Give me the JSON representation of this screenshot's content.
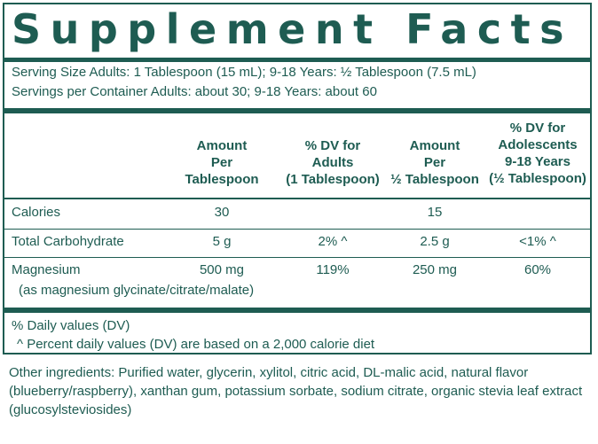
{
  "title": "Supplement Facts",
  "serving_size": "Serving Size Adults: 1 Tablespoon (15 mL); 9-18 Years: ½ Tablespoon (7.5 mL)",
  "servings_per_container": "Servings per Container Adults: about 30; 9-18 Years: about 60",
  "columns": [
    {
      "lines": [
        "Amount",
        "Per",
        "Tablespoon"
      ]
    },
    {
      "lines": [
        "% DV for",
        "Adults",
        "(1 Tablespoon)"
      ]
    },
    {
      "lines": [
        "Amount",
        "Per",
        "½ Tablespoon"
      ]
    },
    {
      "lines": [
        "% DV for",
        "Adolescents",
        "9-18 Years",
        "(½ Tablespoon)"
      ]
    }
  ],
  "rows": [
    {
      "label": "Calories",
      "sublabel": "",
      "values": [
        "30",
        "",
        "15",
        ""
      ]
    },
    {
      "label": "Total Carbohydrate",
      "sublabel": "",
      "values": [
        "5 g",
        "2% ^",
        "2.5 g",
        "<1% ^"
      ]
    },
    {
      "label": "Magnesium",
      "sublabel": "(as magnesium glycinate/citrate/malate)",
      "values": [
        "500 mg",
        "119%",
        "250 mg",
        "60%"
      ]
    }
  ],
  "footnotes": [
    "% Daily values (DV)",
    "^ Percent daily values (DV) are based on a 2,000 calorie diet"
  ],
  "ingredients": "Other ingredients: Purified water, glycerin, xylitol, citric acid, DL-malic acid, natural flavor (blueberry/raspberry), xanthan gum, potassium sorbate, sodium citrate, organic stevia leaf extract (glucosylsteviosides)"
}
